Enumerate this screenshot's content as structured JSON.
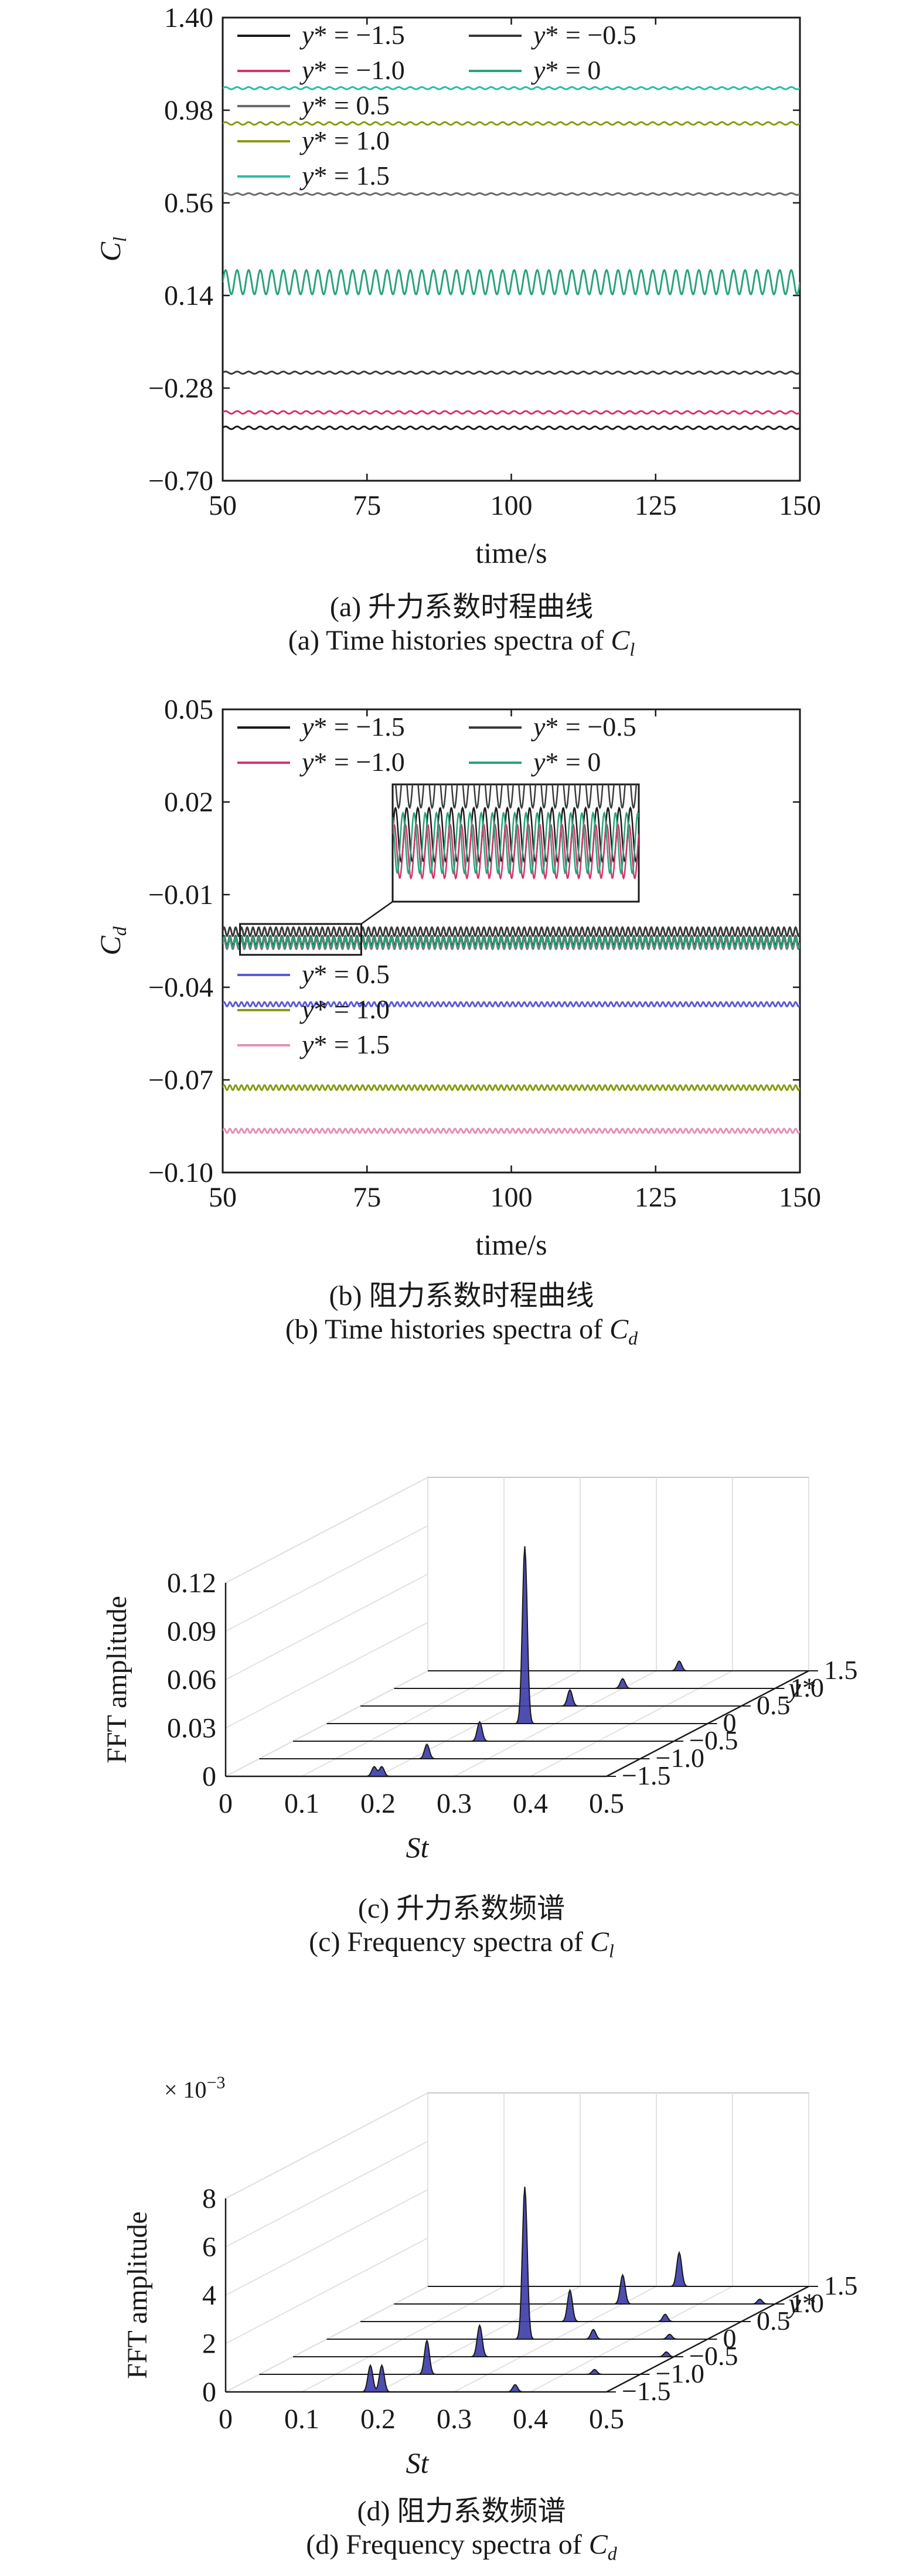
{
  "figure": {
    "panels": [
      {
        "id": "a",
        "caption_zh": "(a) 升力系数时程曲线",
        "caption_en_prefix": "(a) Time histories spectra of ",
        "caption_sym": "C",
        "caption_sub": "l"
      },
      {
        "id": "b",
        "caption_zh": "(b) 阻力系数时程曲线",
        "caption_en_prefix": "(b) Time histories spectra of ",
        "caption_sym": "C",
        "caption_sub": "d"
      },
      {
        "id": "c",
        "caption_zh": "(c) 升力系数频谱",
        "caption_en_prefix": "(c) Frequency spectra of ",
        "caption_sym": "C",
        "caption_sub": "l"
      },
      {
        "id": "d",
        "caption_zh": "(d) 阻力系数频谱",
        "caption_en_prefix": "(d) Frequency spectra of ",
        "caption_sym": "C",
        "caption_sub": "d"
      }
    ]
  },
  "chart_data": [
    {
      "type": "line",
      "xlabel": "time/s",
      "ylabel": "C",
      "ylabel_sub": "l",
      "xlim": [
        50,
        150
      ],
      "ylim": [
        -0.7,
        1.4
      ],
      "xticks": [
        "50",
        "75",
        "100",
        "125",
        "150"
      ],
      "yticks": [
        "−0.70",
        "−0.28",
        "0.14",
        "0.56",
        "0.98",
        "1.40"
      ],
      "legend_position": "top-left",
      "series": [
        {
          "name": "y* = −1.5",
          "color": "#1a1a1a",
          "mean": -0.46,
          "amplitude": 0.006,
          "period": 2.0
        },
        {
          "name": "y* = −1.0",
          "color": "#d6336c",
          "mean": -0.39,
          "amplitude": 0.006,
          "period": 2.0
        },
        {
          "name": "y* = −0.5",
          "color": "#3a3a3a",
          "mean": -0.21,
          "amplitude": 0.005,
          "period": 2.0
        },
        {
          "name": "y* = 0",
          "color": "#2aa37a",
          "mean": 0.2,
          "amplitude": 0.055,
          "period": 2.0
        },
        {
          "name": "y* = 0.5",
          "color": "#6b6b6b",
          "mean": 0.6,
          "amplitude": 0.004,
          "period": 2.0
        },
        {
          "name": "y* = 1.0",
          "color": "#8a9a12",
          "mean": 0.92,
          "amplitude": 0.006,
          "period": 2.0
        },
        {
          "name": "y* = 1.5",
          "color": "#2bbcaa",
          "mean": 1.08,
          "amplitude": 0.005,
          "period": 2.0
        }
      ]
    },
    {
      "type": "line",
      "xlabel": "time/s",
      "ylabel": "C",
      "ylabel_sub": "d",
      "xlim": [
        50,
        150
      ],
      "ylim": [
        -0.1,
        0.05
      ],
      "xticks": [
        "50",
        "75",
        "100",
        "125",
        "150"
      ],
      "yticks": [
        "−0.10",
        "−0.07",
        "−0.04",
        "−0.01",
        "0.02",
        "0.05"
      ],
      "legend_position": "top-left",
      "series": [
        {
          "name": "y* = −1.5",
          "color": "#1a1a1a",
          "mean": -0.025,
          "amplitude": 0.0016,
          "period": 1.0
        },
        {
          "name": "y* = −1.0",
          "color": "#d6336c",
          "mean": -0.026,
          "amplitude": 0.0016,
          "period": 1.0
        },
        {
          "name": "y* = −0.5",
          "color": "#3a3a3a",
          "mean": -0.022,
          "amplitude": 0.0014,
          "period": 1.0
        },
        {
          "name": "y* = 0",
          "color": "#2aa37a",
          "mean": -0.0255,
          "amplitude": 0.0018,
          "period": 1.0
        },
        {
          "name": "y* = 0.5",
          "color": "#5b5bd6",
          "mean": -0.0455,
          "amplitude": 0.0007,
          "period": 1.0
        },
        {
          "name": "y* = 1.0",
          "color": "#8a9a12",
          "mean": -0.0725,
          "amplitude": 0.0008,
          "period": 1.0
        },
        {
          "name": "y* = 1.5",
          "color": "#e58fb8",
          "mean": -0.0865,
          "amplitude": 0.0007,
          "period": 1.0
        }
      ],
      "inset": {
        "xlim": [
          52,
          74
        ],
        "ylim": [
          -0.029,
          -0.022
        ]
      }
    },
    {
      "type": "area",
      "xlabel": "St",
      "ylabel": "FFT amplitude",
      "zlabel": "y*",
      "xlim": [
        0,
        0.5
      ],
      "ylim": [
        0,
        0.12
      ],
      "xticks": [
        "0",
        "0.1",
        "0.2",
        "0.3",
        "0.4",
        "0.5"
      ],
      "yticks": [
        "0",
        "0.03",
        "0.06",
        "0.09",
        "0.12"
      ],
      "zticks": [
        "−1.5",
        "−1.0",
        "−0.5",
        "0",
        "0.5",
        "1.0",
        "1.5"
      ],
      "color": "#3b3ba8",
      "series": [
        {
          "name": "−1.5",
          "peaks": [
            [
              0.195,
              0.006
            ],
            [
              0.205,
              0.006
            ]
          ]
        },
        {
          "name": "−1.0",
          "peaks": [
            [
              0.22,
              0.009
            ]
          ]
        },
        {
          "name": "−0.5",
          "peaks": [
            [
              0.245,
              0.012
            ]
          ]
        },
        {
          "name": "0",
          "peaks": [
            [
              0.26,
              0.11
            ]
          ]
        },
        {
          "name": "0.5",
          "peaks": [
            [
              0.275,
              0.01
            ]
          ]
        },
        {
          "name": "1.0",
          "peaks": [
            [
              0.3,
              0.006
            ]
          ]
        },
        {
          "name": "1.5",
          "peaks": [
            [
              0.33,
              0.006
            ]
          ]
        }
      ]
    },
    {
      "type": "area",
      "xlabel": "St",
      "ylabel": "FFT amplitude",
      "zlabel": "y*",
      "multiplier": "× 10",
      "multiplier_exp": "−3",
      "xlim": [
        0,
        0.5
      ],
      "ylim": [
        0,
        8
      ],
      "xticks": [
        "0",
        "0.1",
        "0.2",
        "0.3",
        "0.4",
        "0.5"
      ],
      "yticks": [
        "0",
        "2",
        "4",
        "6",
        "8"
      ],
      "zticks": [
        "−1.5",
        "−1.0",
        "−0.5",
        "0",
        "0.5",
        "1.0",
        "1.5"
      ],
      "color": "#3b3ba8",
      "series": [
        {
          "name": "−1.5",
          "peaks": [
            [
              0.19,
              1.1
            ],
            [
              0.205,
              1.1
            ],
            [
              0.38,
              0.3
            ]
          ]
        },
        {
          "name": "−1.0",
          "peaks": [
            [
              0.22,
              1.4
            ],
            [
              0.44,
              0.2
            ]
          ]
        },
        {
          "name": "−0.5",
          "peaks": [
            [
              0.245,
              1.3
            ],
            [
              0.49,
              0.2
            ]
          ]
        },
        {
          "name": "0",
          "peaks": [
            [
              0.26,
              6.3
            ],
            [
              0.35,
              0.4
            ],
            [
              0.45,
              0.2
            ]
          ]
        },
        {
          "name": "0.5",
          "peaks": [
            [
              0.275,
              1.3
            ],
            [
              0.4,
              0.3
            ]
          ]
        },
        {
          "name": "1.0",
          "peaks": [
            [
              0.3,
              1.2
            ],
            [
              0.48,
              0.2
            ]
          ]
        },
        {
          "name": "1.5",
          "peaks": [
            [
              0.33,
              1.4
            ]
          ]
        }
      ]
    }
  ]
}
